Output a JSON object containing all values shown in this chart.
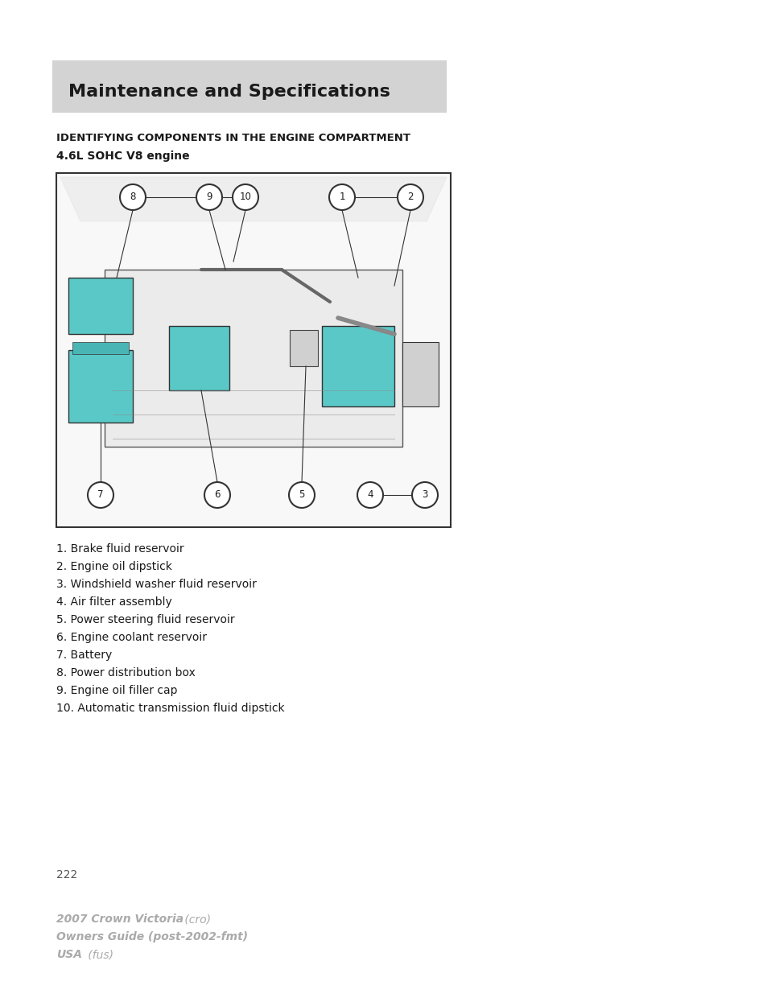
{
  "bg_color": "#ffffff",
  "header_bg": "#d3d3d3",
  "header_text": "Maintenance and Specifications",
  "header_text_color": "#1a1a1a",
  "section_title": "IDENTIFYING COMPONENTS IN THE ENGINE COMPARTMENT",
  "engine_title": "4.6L SOHC V8 engine",
  "components": [
    "1. Brake fluid reservoir",
    "2. Engine oil dipstick",
    "3. Windshield washer fluid reservoir",
    "4. Air filter assembly",
    "5. Power steering fluid reservoir",
    "6. Engine coolant reservoir",
    "7. Battery",
    "8. Power distribution box",
    "9. Engine oil filler cap",
    "10. Automatic transmission fluid dipstick"
  ],
  "footer_line1_bold": "2007 Crown Victoria",
  "footer_line1_italic": " (cro)",
  "footer_line2_bold": "Owners Guide (post-2002-fmt)",
  "footer_line3_bold": "USA",
  "footer_line3_italic": " (fus)",
  "page_number": "222",
  "page_number_color": "#555555",
  "footer_color": "#aaaaaa"
}
